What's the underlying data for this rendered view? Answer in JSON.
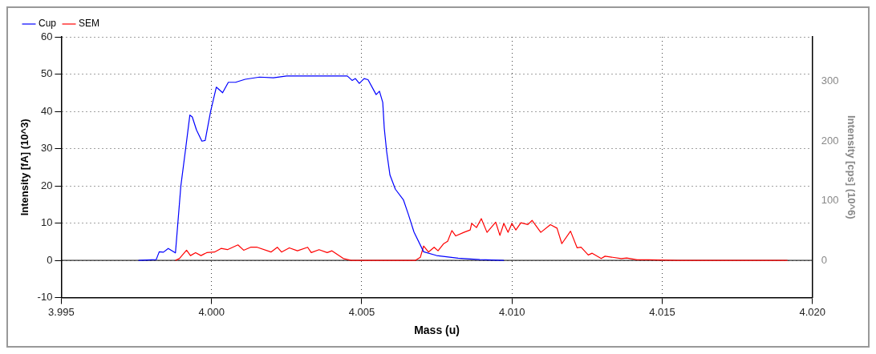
{
  "chart_data": {
    "type": "line",
    "xlabel": "Mass (u)",
    "ylabel": "Intensity [fA] (10^3)",
    "y2label": "Intensity [cps] (10^6)",
    "xlim": [
      3.995,
      4.02
    ],
    "xticks": [
      {
        "value": 3.995,
        "label": "3.995"
      },
      {
        "value": 4.0,
        "label": "4.000"
      },
      {
        "value": 4.005,
        "label": "4.005"
      },
      {
        "value": 4.01,
        "label": "4.010"
      },
      {
        "value": 4.015,
        "label": "4.015"
      },
      {
        "value": 4.02,
        "label": "4.020"
      }
    ],
    "ylim": [
      -10,
      60
    ],
    "yticks": [
      -10,
      0,
      10,
      20,
      30,
      40,
      50,
      60
    ],
    "y2lim": [
      -62.5,
      375
    ],
    "y2ticks": [
      0,
      100,
      200,
      300
    ],
    "ref_lines": [
      {
        "axis": "y",
        "value": 0,
        "color": "#000000"
      }
    ],
    "grid": true,
    "legend": "top left",
    "marker": "none",
    "line_style": "solid",
    "series": [
      {
        "name": "Cup",
        "color": "#0000ff",
        "x": [
          3.99757,
          3.99816,
          3.99826,
          3.9984,
          3.99856,
          3.9988,
          3.99898,
          3.99914,
          3.99928,
          3.99936,
          3.9995,
          3.99968,
          3.99979,
          3.99997,
          4.00016,
          4.00037,
          4.00056,
          4.0008,
          4.00112,
          4.0016,
          4.00206,
          4.0025,
          4.00452,
          4.00468,
          4.00479,
          4.00492,
          4.00508,
          4.00521,
          4.00548,
          4.00559,
          4.0057,
          4.00575,
          4.00583,
          4.00594,
          4.00612,
          4.00639,
          4.00655,
          4.00674,
          4.00706,
          4.00749,
          4.00821,
          4.00893,
          4.00973
        ],
        "values": [
          0,
          0.2,
          2.3,
          2.2,
          3.2,
          2.0,
          20,
          30,
          39,
          38.5,
          35,
          32,
          32.2,
          40,
          46.5,
          45,
          47.8,
          47.8,
          48.6,
          49.2,
          49.0,
          49.5,
          49.5,
          48.3,
          48.8,
          47.5,
          48.8,
          48.5,
          44.5,
          45.4,
          42.4,
          35.5,
          29.2,
          22.9,
          19.1,
          16.2,
          12.4,
          7.6,
          2.3,
          1.3,
          0.6,
          0.2,
          0
        ]
      },
      {
        "name": "SEM",
        "color": "#ff0000",
        "axis": "y2",
        "x": [
          3.9988,
          3.99893,
          3.99917,
          3.9993,
          3.99947,
          3.99965,
          3.99984,
          4.0001,
          4.00032,
          4.00053,
          4.00088,
          4.00107,
          4.0013,
          4.00152,
          4.00198,
          4.00219,
          4.00233,
          4.00259,
          4.00286,
          4.0032,
          4.00332,
          4.00358,
          4.00385,
          4.00401,
          4.00439,
          4.00465,
          4.00679,
          4.00695,
          4.00706,
          4.00722,
          4.00741,
          4.00754,
          4.00773,
          4.00786,
          4.008,
          4.00813,
          4.0084,
          4.00861,
          4.00866,
          4.00882,
          4.00898,
          4.00917,
          4.00946,
          4.0096,
          4.00973,
          4.00987,
          4.01,
          4.01013,
          4.0103,
          4.01053,
          4.01067,
          4.01096,
          4.01128,
          4.0115,
          4.01166,
          4.01195,
          4.01217,
          4.0123,
          4.01254,
          4.01267,
          4.01297,
          4.0131,
          4.01364,
          4.01382,
          4.01417,
          4.01455,
          4.01551,
          4.01917
        ],
        "values": [
          0,
          3,
          17,
          8,
          13,
          8,
          13,
          14,
          20,
          18,
          26,
          17,
          22,
          22,
          14,
          22,
          14,
          21,
          16,
          22,
          13,
          18,
          13,
          16,
          3,
          0,
          0,
          5,
          24,
          14,
          22,
          16,
          28,
          32,
          50,
          41,
          47,
          51,
          62,
          55,
          70,
          47,
          64,
          42,
          62,
          47,
          62,
          51,
          63,
          60,
          67,
          47,
          60,
          54,
          28,
          49,
          21,
          22,
          9,
          12,
          3,
          7,
          3,
          4,
          1,
          1,
          0,
          0
        ]
      }
    ]
  }
}
